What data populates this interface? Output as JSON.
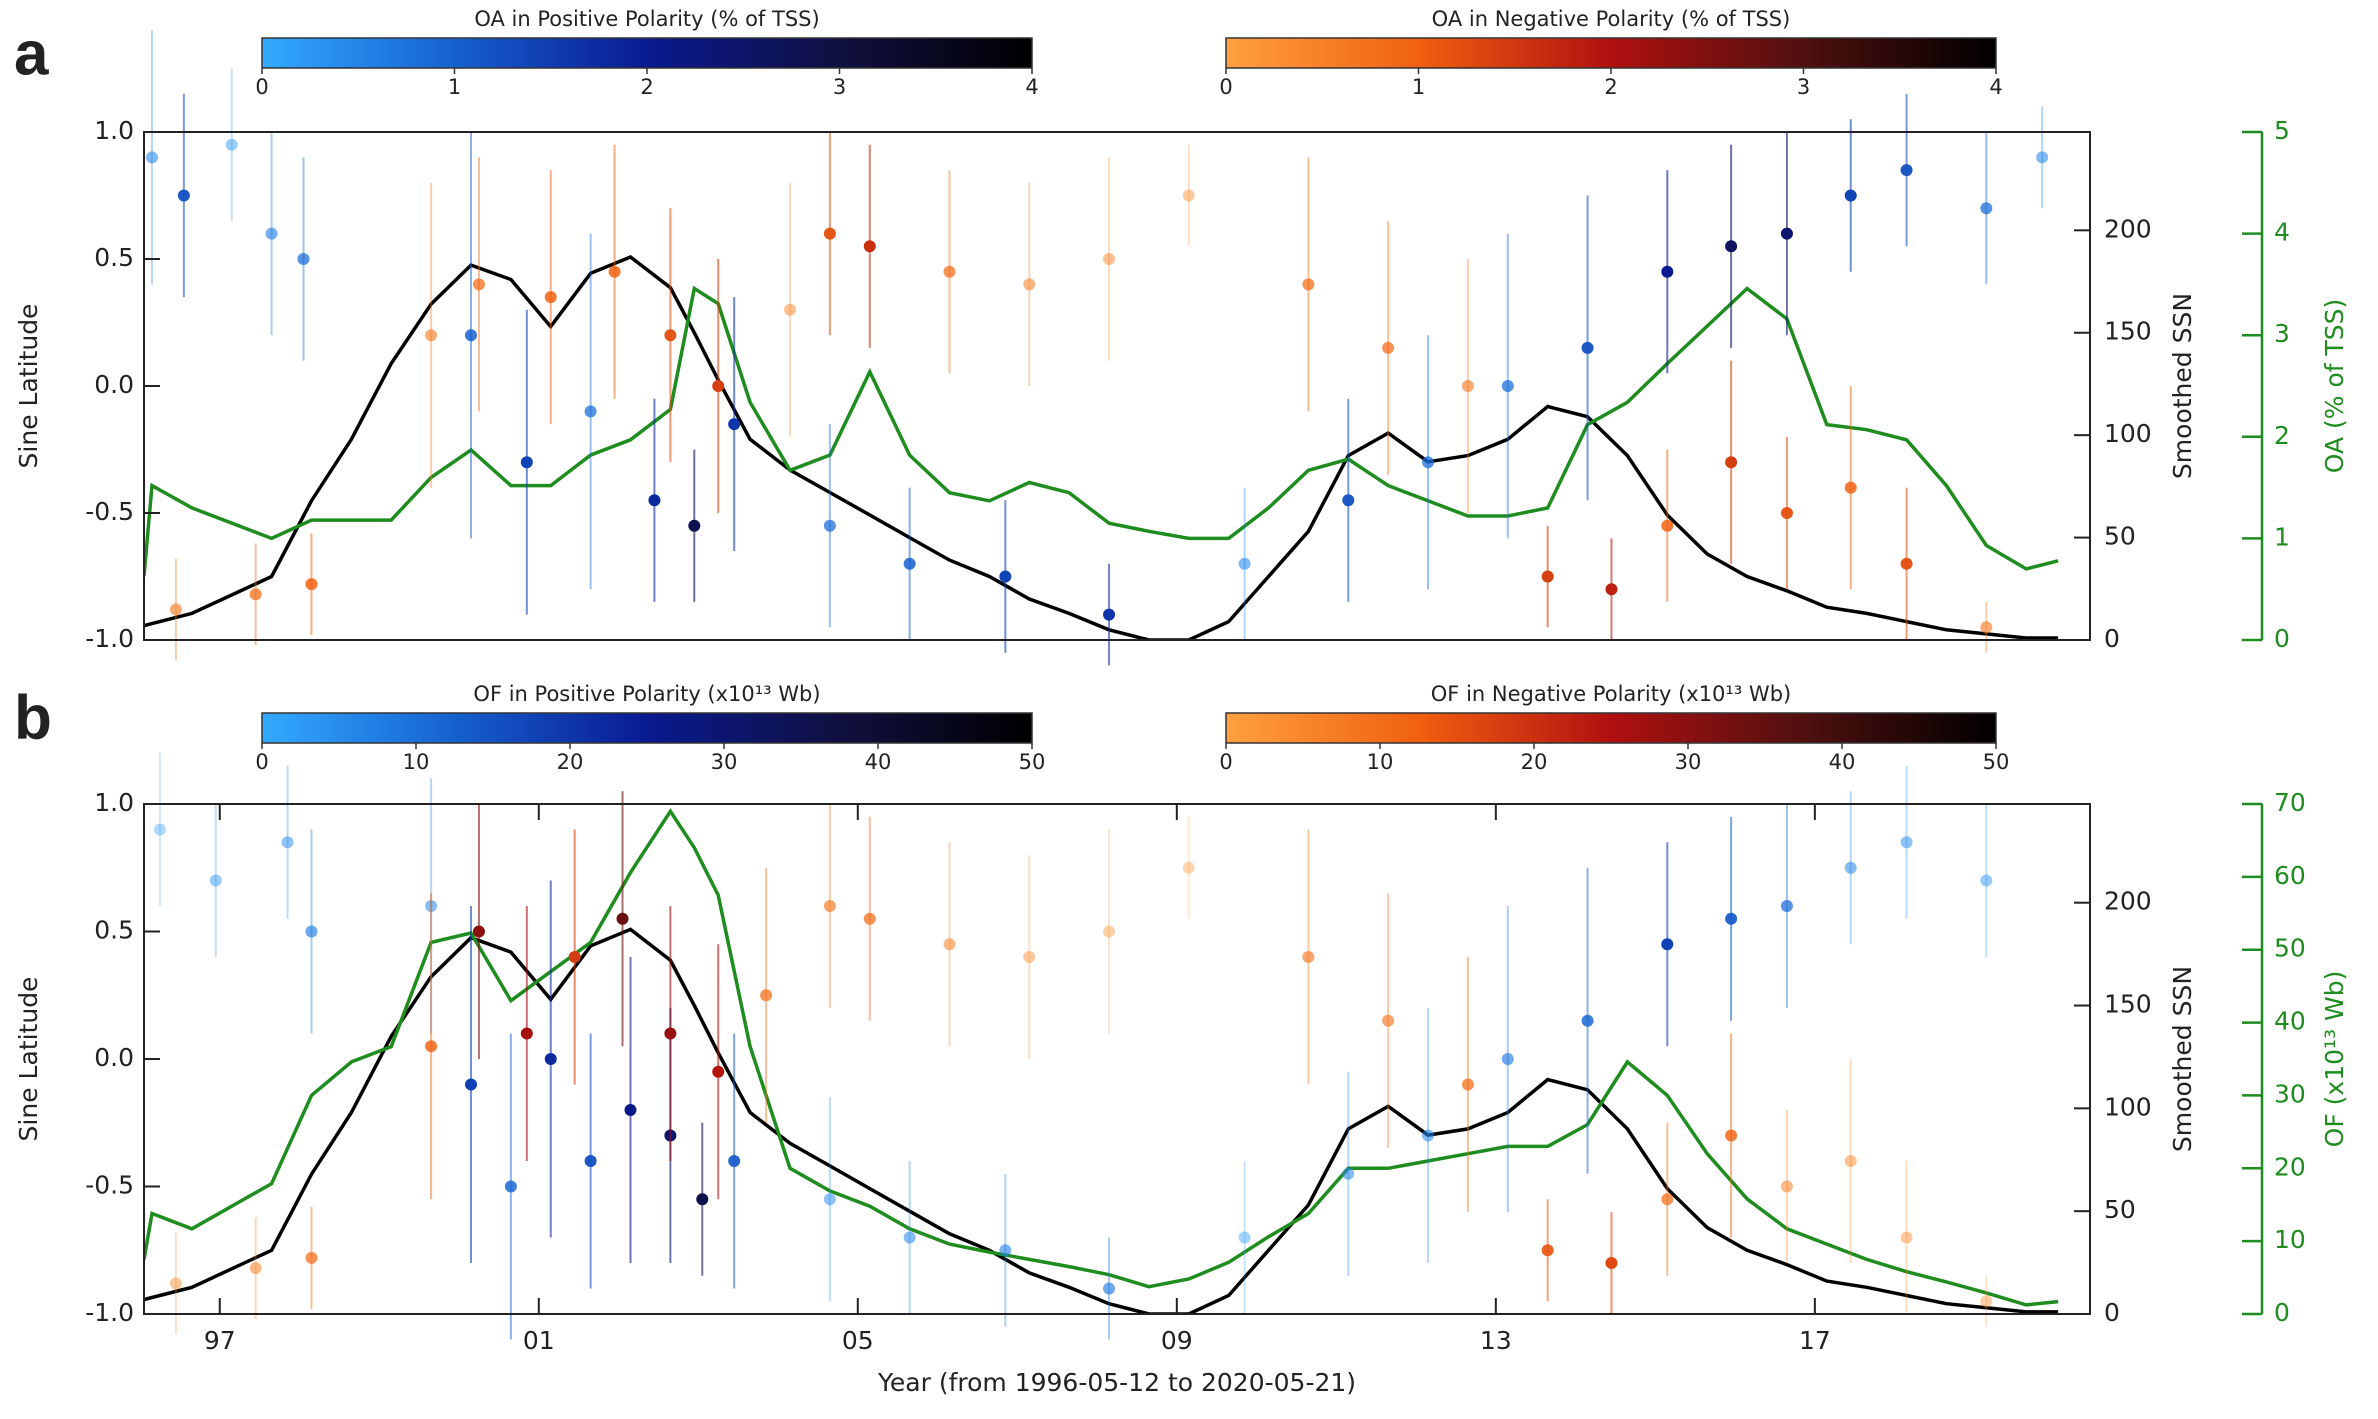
{
  "chart_data": [
    {
      "type": "scatter",
      "label": "a",
      "ylabel": "Sine Latitude",
      "y2label": "Smoothed SSN",
      "y3label": "OA (% of TSS)",
      "ylim": [
        -1,
        1
      ],
      "yticks": [
        {
          "value": -1,
          "label": "-1.0"
        },
        {
          "value": -0.5,
          "label": "-0.5"
        },
        {
          "value": 0,
          "label": "0.0"
        },
        {
          "value": 0.5,
          "label": "0.5"
        },
        {
          "value": 1,
          "label": "1.0"
        }
      ],
      "y2lim": [
        0,
        248
      ],
      "y2ticks": [
        0,
        50,
        100,
        150,
        200
      ],
      "y3lim": [
        0,
        5
      ],
      "y3ticks": [
        0,
        1,
        2,
        3,
        4,
        5
      ],
      "y3color": "#1e8c1e",
      "xlim": [
        1996.4,
        2020.8
      ],
      "colorbars": [
        {
          "label": "OA in Positive Polarity (% of TSS)",
          "lim": [
            0,
            4
          ],
          "ticks": [
            0,
            1,
            2,
            3,
            4
          ],
          "colors": [
            "#33aaff",
            "#1560d0",
            "#0a1a90",
            "#101040",
            "#000000"
          ]
        },
        {
          "label": "OA in Negative Polarity (% of TSS)",
          "lim": [
            0,
            4
          ],
          "ticks": [
            0,
            1,
            2,
            3,
            4
          ],
          "colors": [
            "#ffa040",
            "#f06010",
            "#b01010",
            "#501010",
            "#000000"
          ]
        }
      ],
      "x": [
        1996.4,
        1996.5,
        1997,
        1998,
        1998.5,
        1999,
        1999.5,
        2000,
        2000.5,
        2001,
        2001.5,
        2002,
        2002.5,
        2003,
        2003.3,
        2003.6,
        2004,
        2004.5,
        2005,
        2005.5,
        2006,
        2006.5,
        2007,
        2007.5,
        2008,
        2008.5,
        2009,
        2009.5,
        2010,
        2010.5,
        2011,
        2011.5,
        2012,
        2012.5,
        2013,
        2013.5,
        2014,
        2014.5,
        2015,
        2015.5,
        2016,
        2016.5,
        2017,
        2017.5,
        2018,
        2018.5,
        2019,
        2019.5,
        2020,
        2020.4
      ],
      "lines": [
        {
          "color": "#000000",
          "axis": "y2",
          "values": [
            7,
            8,
            13,
            31,
            68,
            98,
            135,
            164,
            183,
            176,
            153,
            179,
            187,
            172,
            150,
            127,
            98,
            83,
            72,
            61,
            50,
            39,
            31,
            20,
            13,
            5,
            0,
            0,
            9,
            31,
            53,
            90,
            101,
            87,
            90,
            98,
            114,
            109,
            90,
            61,
            42,
            31,
            24,
            16,
            13,
            9,
            5,
            3,
            1,
            1
          ]
        },
        {
          "color": "#1e8c1e",
          "axis": "y3",
          "values": [
            0.63,
            1.52,
            1.3,
            1.0,
            1.18,
            1.18,
            1.18,
            1.6,
            1.87,
            1.52,
            1.52,
            1.82,
            1.97,
            2.27,
            3.46,
            3.31,
            2.34,
            1.67,
            1.82,
            2.64,
            1.82,
            1.45,
            1.37,
            1.55,
            1.45,
            1.15,
            1.07,
            1.0,
            1.0,
            1.3,
            1.67,
            1.78,
            1.52,
            1.37,
            1.22,
            1.22,
            1.3,
            2.12,
            2.34,
            2.72,
            3.09,
            3.46,
            3.16,
            2.12,
            2.07,
            1.97,
            1.52,
            0.93,
            0.7,
            0.78
          ]
        }
      ],
      "scatter": [
        {
          "colorbar": 0,
          "x": [
            1996.5,
            1996.9,
            1997.5,
            1998,
            1998.4,
            2000.5,
            2001.2,
            2002,
            2002.8,
            2003.3,
            2003.8,
            2005,
            2006,
            2007.2,
            2008.5,
            2010.2,
            2011.5,
            2012.5,
            2013.5,
            2014.5,
            2015.5,
            2016.3,
            2017,
            2017.8,
            2018.5,
            2019.5,
            2020.2
          ],
          "y": [
            0.9,
            0.75,
            0.95,
            0.6,
            0.5,
            0.2,
            -0.3,
            -0.1,
            -0.45,
            -0.55,
            -0.15,
            -0.55,
            -0.7,
            -0.75,
            -0.9,
            -0.7,
            -0.45,
            -0.3,
            0,
            0.15,
            0.45,
            0.55,
            0.6,
            0.75,
            0.85,
            0.7,
            0.9
          ],
          "err": [
            0.5,
            0.4,
            0.3,
            0.4,
            0.4,
            0.8,
            0.6,
            0.7,
            0.4,
            0.3,
            0.5,
            0.4,
            0.3,
            0.3,
            0.2,
            0.3,
            0.4,
            0.5,
            0.6,
            0.6,
            0.4,
            0.4,
            0.4,
            0.3,
            0.3,
            0.3,
            0.2
          ],
          "c": [
            0.5,
            1.2,
            0.3,
            0.6,
            0.8,
            1,
            1.4,
            0.8,
            1.8,
            2.8,
            1.6,
            0.8,
            1,
            1.4,
            1.6,
            0.5,
            1.2,
            0.8,
            0.8,
            1.2,
            2,
            2.6,
            2.4,
            1.4,
            1.2,
            0.8,
            0.5
          ]
        },
        {
          "colorbar": 1,
          "x": [
            1996.8,
            1997.8,
            1998.5,
            2000,
            2000.6,
            2001.5,
            2002.3,
            2003,
            2003.6,
            2004.5,
            2005,
            2005.5,
            2006.5,
            2007.5,
            2008.5,
            2009.5,
            2011,
            2012,
            2013,
            2014,
            2014.8,
            2015.5,
            2016.3,
            2017,
            2017.8,
            2018.5,
            2019.5
          ],
          "y": [
            -0.88,
            -0.82,
            -0.78,
            0.2,
            0.4,
            0.35,
            0.45,
            0.2,
            0,
            0.3,
            0.6,
            0.55,
            0.45,
            0.4,
            0.5,
            0.75,
            0.4,
            0.15,
            0,
            -0.75,
            -0.8,
            -0.55,
            -0.3,
            -0.5,
            -0.4,
            -0.7,
            -0.95
          ],
          "err": [
            0.2,
            0.2,
            0.2,
            0.6,
            0.5,
            0.5,
            0.5,
            0.5,
            0.5,
            0.5,
            0.4,
            0.4,
            0.4,
            0.4,
            0.4,
            0.2,
            0.5,
            0.5,
            0.5,
            0.2,
            0.2,
            0.3,
            0.4,
            0.3,
            0.4,
            0.3,
            0.1
          ],
          "c": [
            0.6,
            0.8,
            1,
            0.6,
            0.8,
            1,
            1,
            1.2,
            1.4,
            0.4,
            1.2,
            1.6,
            0.8,
            0.5,
            0.4,
            0.3,
            0.8,
            0.8,
            0.6,
            1.4,
            1.8,
            1,
            1.4,
            1.2,
            1,
            1.2,
            0.6
          ]
        }
      ]
    },
    {
      "type": "scatter",
      "label": "b",
      "ylabel": "Sine Latitude",
      "y2label": "Smoothed SSN",
      "y3label": "OF (x10¹³ Wb)",
      "xlabel": "Year (from 1996-05-12 to 2020-05-21)",
      "ylim": [
        -1,
        1
      ],
      "yticks": [
        {
          "value": -1,
          "label": "-1.0"
        },
        {
          "value": -0.5,
          "label": "-0.5"
        },
        {
          "value": 0,
          "label": "0.0"
        },
        {
          "value": 0.5,
          "label": "0.5"
        },
        {
          "value": 1,
          "label": "1.0"
        }
      ],
      "y2lim": [
        0,
        248
      ],
      "y2ticks": [
        0,
        50,
        100,
        150,
        200
      ],
      "y3lim": [
        0,
        70
      ],
      "y3ticks": [
        0,
        10,
        20,
        30,
        40,
        50,
        60,
        70
      ],
      "y3color": "#1e8c1e",
      "xlim": [
        1996.4,
        2020.8
      ],
      "xticks": [
        {
          "value": 1997.35,
          "label": "97"
        },
        {
          "value": 2001.35,
          "label": "01"
        },
        {
          "value": 2005.35,
          "label": "05"
        },
        {
          "value": 2009.35,
          "label": "09"
        },
        {
          "value": 2013.35,
          "label": "13"
        },
        {
          "value": 2017.35,
          "label": "17"
        }
      ],
      "colorbars": [
        {
          "label": "OF in Positive Polarity (x10¹³ Wb)",
          "lim": [
            0,
            50
          ],
          "ticks": [
            0,
            10,
            20,
            30,
            40,
            50
          ],
          "colors": [
            "#33aaff",
            "#1560d0",
            "#0a1a90",
            "#101040",
            "#000000"
          ]
        },
        {
          "label": "OF in Negative Polarity (x10¹³ Wb)",
          "lim": [
            0,
            50
          ],
          "ticks": [
            0,
            10,
            20,
            30,
            40,
            50
          ],
          "colors": [
            "#ffa040",
            "#f06010",
            "#b01010",
            "#501010",
            "#000000"
          ]
        }
      ],
      "x": [
        1996.4,
        1996.5,
        1997,
        1998,
        1998.5,
        1999,
        1999.5,
        2000,
        2000.5,
        2001,
        2001.5,
        2002,
        2002.5,
        2003,
        2003.3,
        2003.6,
        2004,
        2004.5,
        2005,
        2005.5,
        2006,
        2006.5,
        2007,
        2007.5,
        2008,
        2008.5,
        2009,
        2009.5,
        2010,
        2010.5,
        2011,
        2011.5,
        2012,
        2012.5,
        2013,
        2013.5,
        2014,
        2014.5,
        2015,
        2015.5,
        2016,
        2016.5,
        2017,
        2017.5,
        2018,
        2018.5,
        2019,
        2019.5,
        2020,
        2020.4
      ],
      "lines": [
        {
          "color": "#000000",
          "axis": "y2",
          "values": [
            7,
            8,
            13,
            31,
            68,
            98,
            135,
            164,
            183,
            176,
            153,
            179,
            187,
            172,
            150,
            127,
            98,
            83,
            72,
            61,
            50,
            39,
            31,
            20,
            13,
            5,
            0,
            0,
            9,
            31,
            53,
            90,
            101,
            87,
            90,
            98,
            114,
            109,
            90,
            61,
            42,
            31,
            24,
            16,
            13,
            9,
            5,
            3,
            1,
            1
          ]
        },
        {
          "color": "#1e8c1e",
          "axis": "y3",
          "values": [
            7.5,
            13.8,
            11.7,
            17.9,
            30,
            34.6,
            36.7,
            51,
            52.3,
            43,
            47,
            51,
            60.6,
            69,
            64,
            57.5,
            36.7,
            20,
            16.9,
            14.8,
            11.7,
            9.6,
            8.5,
            7.5,
            6.5,
            5.4,
            3.75,
            4.8,
            7.1,
            10.6,
            13.8,
            20,
            20,
            21,
            22,
            23,
            23,
            26,
            34.6,
            30,
            22,
            15.8,
            11.7,
            9.6,
            7.5,
            5.8,
            4.4,
            2.9,
            1.25,
            1.7
          ]
        }
      ],
      "scatter": [
        {
          "colorbar": 0,
          "x": [
            1996.6,
            1997.3,
            1998.2,
            1998.5,
            2000,
            2000.5,
            2001,
            2001.5,
            2002,
            2002.5,
            2003,
            2003.4,
            2003.8,
            2005,
            2006,
            2007.2,
            2008.5,
            2010.2,
            2011.5,
            2012.5,
            2013.5,
            2014.5,
            2015.5,
            2016.3,
            2017,
            2017.8,
            2018.5,
            2019.5
          ],
          "y": [
            0.9,
            0.7,
            0.85,
            0.5,
            0.6,
            -0.1,
            -0.5,
            0,
            -0.4,
            -0.2,
            -0.3,
            -0.55,
            -0.4,
            -0.55,
            -0.7,
            -0.75,
            -0.9,
            -0.7,
            -0.45,
            -0.3,
            0,
            0.15,
            0.45,
            0.55,
            0.6,
            0.75,
            0.85,
            0.7
          ],
          "err": [
            0.3,
            0.3,
            0.3,
            0.4,
            0.5,
            0.7,
            0.6,
            0.7,
            0.5,
            0.6,
            0.5,
            0.3,
            0.5,
            0.4,
            0.3,
            0.3,
            0.2,
            0.3,
            0.4,
            0.5,
            0.6,
            0.6,
            0.4,
            0.4,
            0.4,
            0.3,
            0.3,
            0.3
          ],
          "c": [
            2,
            4,
            5,
            8,
            6,
            18,
            12,
            22,
            15,
            26,
            30,
            36,
            14,
            5,
            6,
            7,
            8,
            3,
            6,
            6,
            8,
            12,
            18,
            14,
            10,
            6,
            5,
            4
          ]
        },
        {
          "colorbar": 1,
          "x": [
            1996.8,
            1997.8,
            1998.5,
            2000,
            2000.6,
            2001.2,
            2001.8,
            2002.4,
            2003,
            2003.6,
            2004.2,
            2005,
            2005.5,
            2006.5,
            2007.5,
            2008.5,
            2009.5,
            2011,
            2012,
            2013,
            2014,
            2014.8,
            2015.5,
            2016.3,
            2017,
            2017.8,
            2018.5,
            2019.5
          ],
          "y": [
            -0.88,
            -0.82,
            -0.78,
            0.05,
            0.5,
            0.1,
            0.4,
            0.55,
            0.1,
            -0.05,
            0.25,
            0.6,
            0.55,
            0.45,
            0.4,
            0.5,
            0.75,
            0.4,
            0.15,
            -0.1,
            -0.75,
            -0.8,
            -0.55,
            -0.3,
            -0.5,
            -0.4,
            -0.7,
            -0.95
          ],
          "err": [
            0.2,
            0.2,
            0.2,
            0.6,
            0.5,
            0.5,
            0.5,
            0.5,
            0.5,
            0.5,
            0.5,
            0.4,
            0.4,
            0.4,
            0.4,
            0.4,
            0.2,
            0.5,
            0.5,
            0.5,
            0.2,
            0.2,
            0.3,
            0.4,
            0.3,
            0.4,
            0.3,
            0.1
          ],
          "c": [
            4,
            6,
            10,
            12,
            30,
            26,
            18,
            34,
            28,
            24,
            10,
            8,
            10,
            6,
            4,
            3,
            2,
            8,
            8,
            10,
            14,
            16,
            10,
            12,
            6,
            5,
            4,
            3
          ]
        }
      ]
    }
  ]
}
